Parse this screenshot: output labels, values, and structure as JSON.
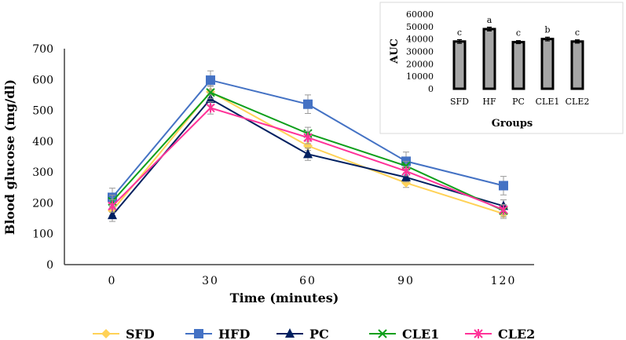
{
  "chart_data": [
    {
      "type": "line",
      "title": "",
      "xlabel": "Time (minutes)",
      "ylabel": "Blood glucose (mg/dl)",
      "x": [
        0,
        30,
        60,
        90,
        120
      ],
      "ylim": [
        0,
        700
      ],
      "yticks": [
        0,
        100,
        200,
        300,
        400,
        500,
        600,
        700
      ],
      "legend_position": "bottom",
      "series": [
        {
          "name": "SFD",
          "color": "#FFD257",
          "marker": "diamond",
          "values": [
            175,
            560,
            385,
            265,
            165
          ],
          "errors": [
            15,
            20,
            15,
            15,
            15
          ]
        },
        {
          "name": "HFD",
          "color": "#4472C4",
          "marker": "square",
          "values": [
            218,
            598,
            520,
            335,
            256
          ],
          "errors": [
            30,
            30,
            30,
            30,
            30
          ]
        },
        {
          "name": "PC",
          "color": "#002060",
          "marker": "triangle",
          "values": [
            160,
            537,
            358,
            283,
            190
          ],
          "errors": [
            20,
            20,
            20,
            15,
            20
          ]
        },
        {
          "name": "CLE1",
          "color": "#0E9F1B",
          "marker": "x",
          "values": [
            205,
            558,
            425,
            320,
            175
          ],
          "errors": [
            20,
            20,
            20,
            15,
            20
          ]
        },
        {
          "name": "CLE2",
          "color": "#FF3399",
          "marker": "star",
          "values": [
            190,
            508,
            412,
            303,
            178
          ],
          "errors": [
            20,
            20,
            20,
            15,
            15
          ]
        }
      ]
    },
    {
      "type": "bar",
      "title": "",
      "xlabel": "Groups",
      "ylabel": "AUC",
      "categories": [
        "SFD",
        "HF",
        "PC",
        "CLE1",
        "CLE2"
      ],
      "values": [
        38000,
        48000,
        37500,
        40000,
        38000
      ],
      "errors": [
        1500,
        1500,
        1200,
        1500,
        1300
      ],
      "labels": [
        "c",
        "a",
        "c",
        "b",
        "c"
      ],
      "ylim": [
        0,
        60000
      ],
      "yticks": [
        0,
        10000,
        20000,
        30000,
        40000,
        50000,
        60000
      ],
      "bar_color": "#A6A6A6"
    }
  ]
}
